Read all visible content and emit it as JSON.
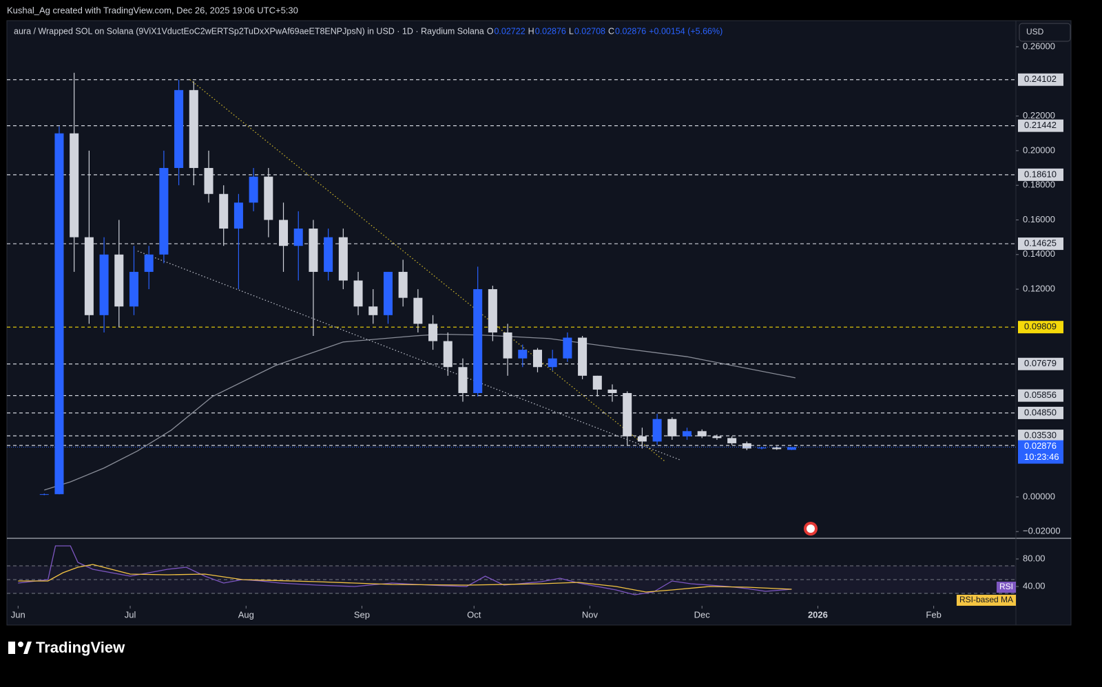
{
  "header": {
    "credit": "Kushal_Ag created with TradingView.com, Dec 26, 2025 19:06 UTC+5:30"
  },
  "chart_data": [
    {
      "type": "candlestick",
      "title": "aura / Wrapped SOL on Solana (9ViX1VductEoC2wERTSp2TuDxXPwAf69aeET8ENPJpsN) in USD · 1D · Raydium Solana",
      "ohlc_legend": {
        "o": "O",
        "h": "H",
        "l": "L",
        "c": "C",
        "change": "+0.00154 (+5.66%)"
      },
      "currency_button": "USD",
      "up_color": "#2962ff",
      "down_color": "#d1d4dc",
      "x": [
        7,
        11,
        15,
        19,
        23,
        27,
        31,
        35,
        39,
        43,
        47,
        51,
        55,
        59,
        63,
        67,
        71,
        75,
        79,
        83,
        87,
        91,
        95,
        99,
        103,
        107,
        111,
        115,
        119,
        123,
        127,
        131,
        135,
        139,
        143,
        147,
        151,
        155,
        159,
        163,
        167,
        171,
        175,
        179,
        183,
        187,
        191,
        195,
        199,
        203,
        207
      ],
      "open": [
        0.0015,
        0.0016,
        0.21,
        0.15,
        0.105,
        0.14,
        0.11,
        0.13,
        0.14,
        0.19,
        0.235,
        0.19,
        0.175,
        0.155,
        0.17,
        0.185,
        0.16,
        0.145,
        0.155,
        0.13,
        0.15,
        0.125,
        0.11,
        0.105,
        0.13,
        0.115,
        0.1,
        0.09,
        0.075,
        0.06,
        0.12,
        0.095,
        0.08,
        0.085,
        0.075,
        0.08,
        0.092,
        0.07,
        0.062,
        0.06,
        0.035,
        0.032,
        0.045,
        0.035,
        0.038,
        0.035,
        0.034,
        0.031,
        0.028,
        0.0285,
        0.02722
      ],
      "high": [
        0.002,
        0.214,
        0.245,
        0.2,
        0.15,
        0.16,
        0.145,
        0.145,
        0.2,
        0.241,
        0.24,
        0.2,
        0.18,
        0.175,
        0.19,
        0.19,
        0.17,
        0.165,
        0.16,
        0.155,
        0.155,
        0.13,
        0.12,
        0.13,
        0.137,
        0.12,
        0.105,
        0.095,
        0.08,
        0.133,
        0.122,
        0.1,
        0.088,
        0.086,
        0.085,
        0.095,
        0.093,
        0.07,
        0.065,
        0.061,
        0.04,
        0.048,
        0.046,
        0.04,
        0.039,
        0.036,
        0.035,
        0.032,
        0.029,
        0.0292,
        0.02876
      ],
      "low": [
        0.001,
        0.0015,
        0.13,
        0.1,
        0.095,
        0.098,
        0.105,
        0.12,
        0.135,
        0.18,
        0.18,
        0.17,
        0.145,
        0.12,
        0.165,
        0.15,
        0.13,
        0.125,
        0.093,
        0.125,
        0.12,
        0.105,
        0.1,
        0.1,
        0.11,
        0.095,
        0.085,
        0.07,
        0.055,
        0.058,
        0.09,
        0.07,
        0.075,
        0.072,
        0.073,
        0.078,
        0.068,
        0.058,
        0.055,
        0.03,
        0.028,
        0.03,
        0.033,
        0.033,
        0.034,
        0.033,
        0.03,
        0.027,
        0.0275,
        0.0272,
        0.02708
      ],
      "close": [
        0.0016,
        0.21,
        0.15,
        0.105,
        0.14,
        0.11,
        0.13,
        0.14,
        0.19,
        0.235,
        0.19,
        0.175,
        0.155,
        0.17,
        0.185,
        0.16,
        0.145,
        0.155,
        0.13,
        0.15,
        0.125,
        0.11,
        0.105,
        0.13,
        0.115,
        0.1,
        0.09,
        0.075,
        0.06,
        0.12,
        0.095,
        0.08,
        0.085,
        0.075,
        0.08,
        0.092,
        0.07,
        0.062,
        0.06,
        0.035,
        0.032,
        0.045,
        0.035,
        0.038,
        0.035,
        0.034,
        0.031,
        0.028,
        0.0285,
        0.0276,
        0.02876
      ],
      "moving_average": {
        "color": "#8a8e99",
        "x": [
          7,
          14,
          23,
          32,
          41,
          52,
          69,
          87,
          106,
          113,
          124,
          142,
          161,
          179,
          208
        ],
        "values": [
          0.004,
          0.0087,
          0.0167,
          0.0266,
          0.0386,
          0.058,
          0.076,
          0.0895,
          0.093,
          0.094,
          0.0935,
          0.0915,
          0.086,
          0.081,
          0.0688
        ]
      },
      "levels": [
        {
          "value": 0.24102,
          "color": "#d1d4dc"
        },
        {
          "value": 0.21442,
          "color": "#d1d4dc"
        },
        {
          "value": 0.1861,
          "label": "0.18610",
          "color": "#d1d4dc"
        },
        {
          "value": 0.14625,
          "color": "#d1d4dc"
        },
        {
          "value": 0.09809,
          "color": "#f5d90a"
        },
        {
          "value": 0.07679,
          "color": "#d1d4dc"
        },
        {
          "value": 0.05856,
          "color": "#d1d4dc"
        },
        {
          "value": 0.0485,
          "label": "0.04850",
          "color": "#d1d4dc"
        },
        {
          "value": 0.0353,
          "label": "0.03530",
          "color": "#d1d4dc"
        },
        {
          "value": 0.02974,
          "color": "#d1d4dc"
        }
      ],
      "trendlines": [
        {
          "color": "#c9b22a",
          "x": [
            46,
            173
          ],
          "values": [
            0.241,
            0.0207
          ]
        },
        {
          "color": "#b8bcc6",
          "x": [
            32,
            177
          ],
          "values": [
            0.142,
            0.0215
          ]
        }
      ],
      "last_price": {
        "value": 0.02876,
        "countdown": "10:23:46",
        "color": "#2962ff"
      },
      "xlim": [
        -3,
        267
      ],
      "ylim": [
        -0.0239,
        0.2751
      ],
      "yticks": [
        {
          "value": 0.26,
          "label": "0.26000"
        },
        {
          "value": 0.22,
          "label": "0.22000"
        },
        {
          "value": 0.2,
          "label": "0.20000"
        },
        {
          "value": 0.18,
          "label": "0.18000"
        },
        {
          "value": 0.16,
          "label": "0.16000"
        },
        {
          "value": 0.14,
          "label": "0.14000"
        },
        {
          "value": 0.12,
          "label": "0.12000"
        },
        {
          "value": 0,
          "label": "0.00000"
        },
        {
          "value": -0.02,
          "label": "−0.02000"
        }
      ],
      "xticks": [
        {
          "value": 0,
          "label": "Jun"
        },
        {
          "value": 30,
          "label": "Jul"
        },
        {
          "value": 61,
          "label": "Aug"
        },
        {
          "value": 92,
          "label": "Sep"
        },
        {
          "value": 122,
          "label": "Oct"
        },
        {
          "value": 153,
          "label": "Nov"
        },
        {
          "value": 183,
          "label": "Dec"
        },
        {
          "value": 214,
          "label": "2026"
        },
        {
          "value": 245,
          "label": "Feb"
        }
      ]
    },
    {
      "type": "line",
      "series": [
        {
          "name": "RSI",
          "color": "#7e57c2",
          "x": [
            0,
            8,
            10,
            14,
            16,
            20,
            25,
            30,
            35,
            40,
            45,
            50,
            55,
            60,
            65,
            70,
            80,
            90,
            100,
            110,
            120,
            125,
            130,
            140,
            145,
            150,
            160,
            165,
            170,
            175,
            180,
            190,
            195,
            200,
            207
          ],
          "values": [
            45,
            50,
            99,
            99,
            75,
            65,
            60,
            55,
            60,
            65,
            68,
            55,
            45,
            50,
            48,
            45,
            42,
            40,
            45,
            42,
            40,
            55,
            42,
            47,
            52,
            45,
            35,
            28,
            32,
            48,
            44,
            40,
            37,
            33,
            36
          ]
        },
        {
          "name": "RSI-based MA",
          "color": "#f5c542",
          "x": [
            0,
            8,
            12,
            16,
            20,
            25,
            30,
            40,
            50,
            60,
            80,
            100,
            120,
            140,
            150,
            160,
            168,
            175,
            185,
            195,
            207
          ],
          "values": [
            48,
            48,
            60,
            68,
            72,
            65,
            58,
            57,
            58,
            50,
            47,
            43,
            42,
            44,
            46,
            40,
            32,
            35,
            40,
            39,
            36
          ]
        }
      ],
      "xlim": [
        -3,
        267
      ],
      "ylim": [
        12,
        107
      ],
      "yticks": [
        {
          "value": 80,
          "label": "80.00"
        },
        {
          "value": 40,
          "label": "40.00"
        }
      ],
      "bands": [
        70,
        50,
        30
      ]
    }
  ],
  "footer": {
    "logo": "TradingView"
  }
}
